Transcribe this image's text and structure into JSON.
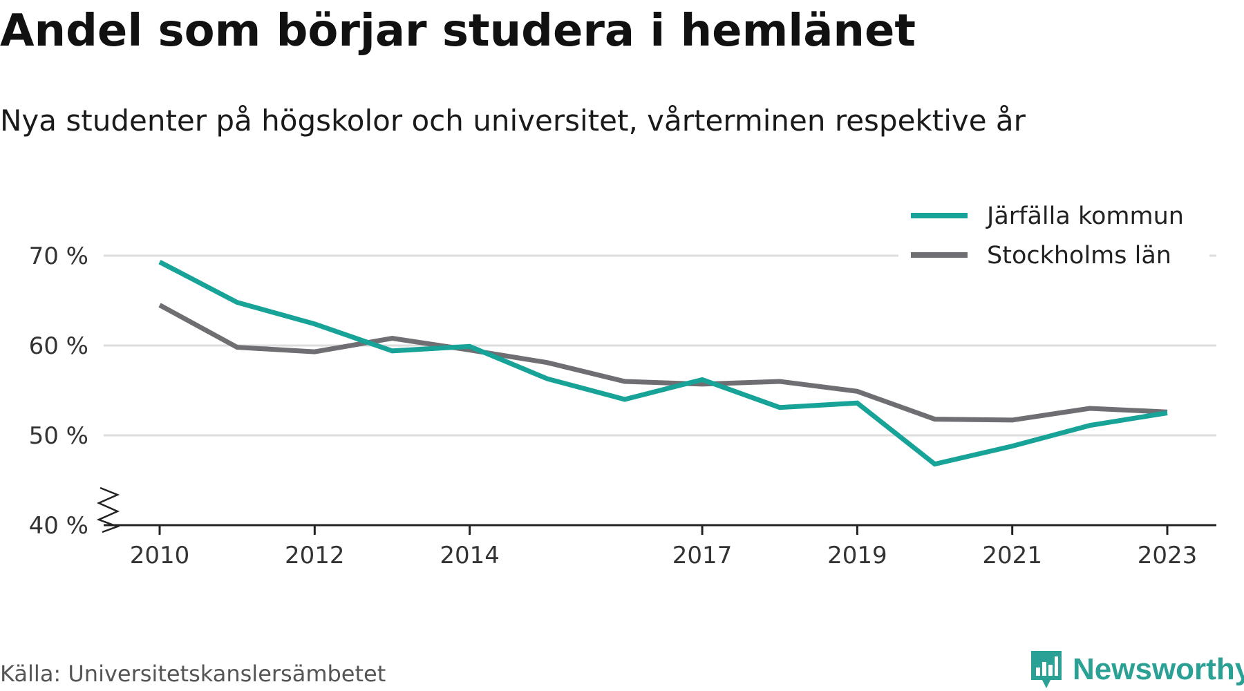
{
  "chart_data": {
    "type": "line",
    "title": "Andel som börjar studera i hemlänet",
    "subtitle": "Nya studenter på högskolor och universitet, vårterminen respektive år",
    "x": [
      2010,
      2011,
      2012,
      2013,
      2014,
      2015,
      2016,
      2017,
      2018,
      2019,
      2020,
      2021,
      2022,
      2023
    ],
    "x_tick_labels": [
      "2010",
      "2012",
      "2014",
      "2017",
      "2019",
      "2021",
      "2023"
    ],
    "y_tick_labels": [
      "40 %",
      "50 %",
      "60 %",
      "70 %"
    ],
    "y_ticks": [
      40,
      50,
      60,
      70
    ],
    "ylim": [
      40,
      72
    ],
    "grid": true,
    "legend_position": "top-right",
    "series": [
      {
        "name": "Järfälla kommun",
        "color": "#17a398",
        "values": [
          69.3,
          64.8,
          62.4,
          59.4,
          59.9,
          56.3,
          54.0,
          56.2,
          53.1,
          53.6,
          46.8,
          48.8,
          51.1,
          52.5
        ]
      },
      {
        "name": "Stockholms län",
        "color": "#6f6f73",
        "values": [
          64.5,
          59.8,
          59.3,
          60.8,
          59.5,
          58.1,
          56.0,
          55.7,
          56.0,
          54.9,
          51.8,
          51.7,
          53.0,
          52.6
        ]
      }
    ]
  },
  "source": "Källa: Universitetskanslersämbetet",
  "logo": {
    "text": "Newsworthy",
    "color": "#2ba094",
    "icon": "bar-chart-speech-bubble-icon"
  }
}
